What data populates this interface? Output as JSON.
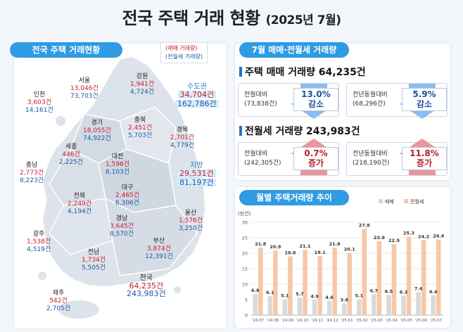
{
  "title": {
    "main": "전국 주택 거래 현황",
    "sub": "(2025년 7월)"
  },
  "map_panel": {
    "tab": "전국 주택 거래현황",
    "legend": {
      "trade": "(매매 거래량)",
      "lease": "(전월세 거래량)"
    },
    "regions": {
      "seoul": {
        "name": "서울",
        "trade": "13,046건",
        "lease": "73,703건"
      },
      "gangwon": {
        "name": "강원",
        "trade": "1,941건",
        "lease": "4,724건"
      },
      "capital": {
        "name": "수도권",
        "trade": "34,704건",
        "lease": "162,786건"
      },
      "incheon": {
        "name": "인천",
        "trade": "3,603건",
        "lease": "14,161건"
      },
      "gyeonggi": {
        "name": "경기",
        "trade": "18,055건",
        "lease": "74,922건"
      },
      "chungbuk": {
        "name": "충북",
        "trade": "2,451건",
        "lease": "5,703건"
      },
      "gyeongbuk": {
        "name": "경북",
        "trade": "2,701건",
        "lease": "4,779건"
      },
      "sejong": {
        "name": "세종",
        "trade": "446건",
        "lease": "2,225건"
      },
      "daejeon": {
        "name": "대전",
        "trade": "1,596건",
        "lease": "8,103건"
      },
      "chungnam": {
        "name": "충남",
        "trade": "2,773건",
        "lease": "8,223건"
      },
      "local": {
        "name": "지방",
        "trade": "29,531건",
        "lease": "81,197건"
      },
      "daegu": {
        "name": "대구",
        "trade": "2,465건",
        "lease": "6,306건"
      },
      "jeonbuk": {
        "name": "전북",
        "trade": "2,249건",
        "lease": "4,194건"
      },
      "ulsan": {
        "name": "울산",
        "trade": "1,576건",
        "lease": "3,250건"
      },
      "gyeongnam": {
        "name": "경남",
        "trade": "3,645건",
        "lease": "8,570건"
      },
      "gwangju": {
        "name": "광주",
        "trade": "1,538건",
        "lease": "4,519건"
      },
      "busan": {
        "name": "부산",
        "trade": "3,874건",
        "lease": "12,391건"
      },
      "jeonnam": {
        "name": "전남",
        "trade": "1,734건",
        "lease": "5,505건"
      },
      "national": {
        "name": "전국",
        "trade": "64,235건",
        "lease": "243,983건"
      },
      "jeju": {
        "name": "제주",
        "trade": "542건",
        "lease": "2,705건"
      }
    }
  },
  "july_panel": {
    "tab": "7월 매매·전월세 거래량",
    "sale": {
      "heading": "주택 매매 거래량 64,235건",
      "mom": {
        "label1": "전월대비",
        "label2": "(73,838건)",
        "pct": "13.0%",
        "dir": "감소"
      },
      "yoy": {
        "label1": "전년동월대비",
        "label2": "(68,296건)",
        "pct": "5.9%",
        "dir": "감소"
      }
    },
    "lease": {
      "heading": "전월세 거래량 243,983건",
      "mom": {
        "label1": "전월대비",
        "label2": "(242,305건)",
        "pct": "0.7%",
        "dir": "증가"
      },
      "yoy": {
        "label1": "전년동월대비",
        "label2": "(218,190건)",
        "pct": "11.8%",
        "dir": "증가"
      }
    },
    "colors": {
      "down": "#7fb3ea",
      "up": "#e8888a"
    }
  },
  "monthly_panel": {
    "tab": "월별 주택거래량 추이"
  },
  "chart_data": {
    "type": "bar",
    "unit_label": "(만건)",
    "categories": [
      "'24.07",
      "'24.08",
      "'24.09",
      "'24.10",
      "'24.11",
      "'24.12",
      "'25.01",
      "'25.02",
      "'25.03",
      "'25.04",
      "'25.05",
      "'25.06",
      "'25.07"
    ],
    "series": [
      {
        "name": "매매",
        "values": [
          6.8,
          6.1,
          5.1,
          5.7,
          4.9,
          4.6,
          3.8,
          5.1,
          6.7,
          6.5,
          6.3,
          7.4,
          6.4
        ],
        "color": "#d9d9d9"
      },
      {
        "name": "전월세",
        "values": [
          21.8,
          20.9,
          19.0,
          21.1,
          19.1,
          21.8,
          20.1,
          27.8,
          23.9,
          22.9,
          25.3,
          24.2,
          24.4
        ],
        "color": "#f6c8a8"
      }
    ],
    "ylim": [
      0,
      30
    ],
    "yticks": [
      0,
      5,
      10,
      15,
      20,
      25,
      30
    ],
    "grid": true,
    "legend": "top-right"
  }
}
